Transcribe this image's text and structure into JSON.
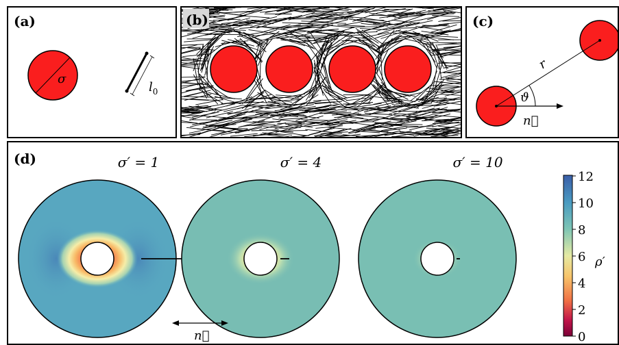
{
  "panels": {
    "a": {
      "label": "(a)",
      "sigma": "σ",
      "rod_length": "l",
      "rod_length_sub": "0"
    },
    "b": {
      "label": "(b)"
    },
    "c": {
      "label": "(c)",
      "distance": "r",
      "angle": "ϑ",
      "director": "n⃗"
    },
    "d": {
      "label": "(d)",
      "director": "n⃗",
      "plots": [
        {
          "title": "σ′ = 1"
        },
        {
          "title": "σ′ = 4"
        },
        {
          "title": "σ′ = 10"
        }
      ],
      "colorbar": {
        "label": "ρ′",
        "ticks": [
          "12",
          "10",
          "8",
          "6",
          "4",
          "2",
          "0"
        ],
        "colors": [
          "#3a5ea8",
          "#4a9bc1",
          "#7cc4b5",
          "#e5eaa4",
          "#f7c46a",
          "#f07045",
          "#c2154a",
          "#7a0037"
        ]
      }
    }
  }
}
